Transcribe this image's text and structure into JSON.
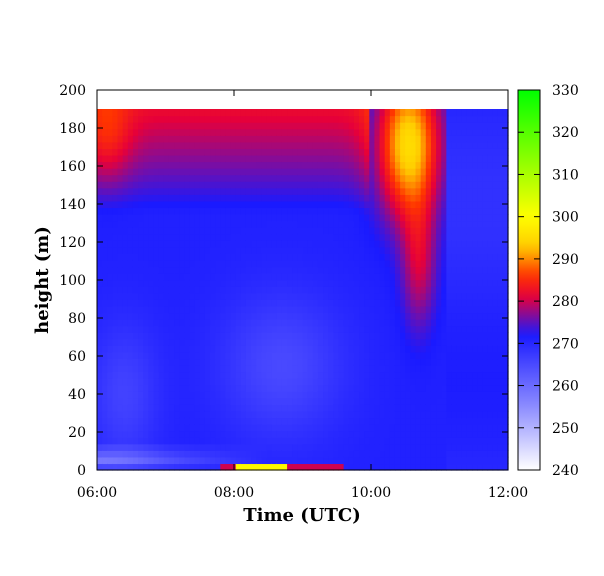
{
  "chart_data": {
    "type": "heatmap",
    "title": "",
    "xlabel": "Time (UTC)",
    "ylabel": "height (m)",
    "x_ticks": [
      "06:00",
      "08:00",
      "10:00",
      "12:00"
    ],
    "x_range_hours": [
      6,
      12
    ],
    "y_ticks": [
      0,
      20,
      40,
      60,
      80,
      100,
      120,
      140,
      160,
      180,
      200
    ],
    "ylim": [
      0,
      200
    ],
    "data_top_height": 190,
    "colorbar": {
      "range": [
        240,
        330
      ],
      "ticks": [
        240,
        250,
        260,
        270,
        280,
        290,
        300,
        310,
        320,
        330
      ],
      "stops": [
        {
          "value": 240,
          "color": "#ffffff"
        },
        {
          "value": 255,
          "color": "#8c8cff"
        },
        {
          "value": 272,
          "color": "#1a1aff"
        },
        {
          "value": 281,
          "color": "#e6003a"
        },
        {
          "value": 286,
          "color": "#ff3300"
        },
        {
          "value": 293,
          "color": "#ffcc00"
        },
        {
          "value": 300,
          "color": "#ffff00"
        },
        {
          "value": 330,
          "color": "#00ff00"
        }
      ]
    },
    "grid": false,
    "legend": "colorbar-right"
  }
}
